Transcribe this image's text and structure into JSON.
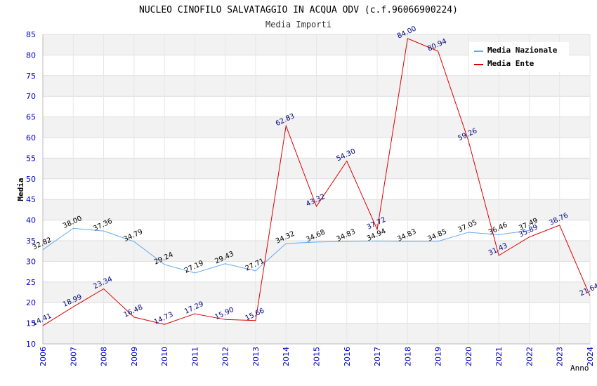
{
  "chart_data": {
    "type": "line",
    "title": "NUCLEO CINOFILO SALVATAGGIO IN ACQUA ODV (c.f.96066900224)",
    "subtitle": "Media Importi",
    "xlabel": "Anno",
    "ylabel": "Media",
    "ylim": [
      10,
      85
    ],
    "yticks": [
      10,
      15,
      20,
      25,
      30,
      35,
      40,
      45,
      50,
      55,
      60,
      65,
      70,
      75,
      80,
      85
    ],
    "grid": true,
    "legend_position": "top-right",
    "x": [
      "2006",
      "2007",
      "2008",
      "2009",
      "2010",
      "2011",
      "2012",
      "2013",
      "2014",
      "2015",
      "2016",
      "2017",
      "2018",
      "2019",
      "2020",
      "2021",
      "2022",
      "2023",
      "2024"
    ],
    "series": [
      {
        "name": "Media Nazionale",
        "color": "#66aaee",
        "label_color": "#000000",
        "values": [
          32.82,
          38.0,
          37.36,
          34.79,
          29.24,
          27.19,
          29.43,
          27.71,
          34.32,
          34.68,
          34.83,
          34.94,
          34.83,
          34.85,
          37.05,
          36.46,
          37.49,
          null,
          null
        ],
        "labels": [
          "32.82",
          "38.00",
          "37.36",
          "34.79",
          "29.24",
          "27.19",
          "29.43",
          "27.71",
          "34.32",
          "34.68",
          "34.83",
          "34.94",
          "34.83",
          "34.85",
          "37.05",
          "36.46",
          "37.49",
          "",
          ""
        ]
      },
      {
        "name": "Media Ente",
        "color": "#dd0000",
        "label_color": "#000080",
        "values": [
          14.41,
          18.99,
          23.34,
          16.48,
          14.73,
          17.29,
          15.9,
          15.66,
          62.83,
          43.32,
          54.3,
          37.72,
          84.0,
          80.94,
          59.26,
          31.43,
          35.89,
          38.76,
          21.64
        ],
        "labels": [
          "14.41",
          "18.99",
          "23.34",
          "16.48",
          "14.73",
          "17.29",
          "15.90",
          "15.66",
          "62.83",
          "43.32",
          "54.30",
          "37.72",
          "84.00",
          "80.94",
          "59.26",
          "31.43",
          "35.89",
          "38.76",
          "21.64"
        ]
      }
    ]
  }
}
